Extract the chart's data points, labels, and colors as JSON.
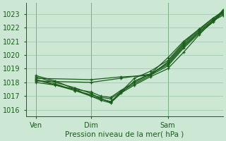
{
  "background_color": "#cce8d4",
  "plot_bg_color": "#cce8d4",
  "grid_color": "#99c4a8",
  "line_color": "#1a5c1a",
  "title": "Pression niveau de la mer( hPa )",
  "xtick_labels": [
    "Ven",
    "Dim",
    "Sam"
  ],
  "ylim": [
    1015.5,
    1023.8
  ],
  "yticks": [
    1016,
    1017,
    1018,
    1019,
    1020,
    1021,
    1022,
    1023
  ],
  "xlim": [
    0,
    100
  ],
  "ven_x": 5,
  "dim_x": 33,
  "sam_x": 72,
  "series": [
    {
      "x": [
        5,
        15,
        25,
        33,
        38,
        43,
        48,
        55,
        63,
        72,
        80,
        88,
        95,
        100
      ],
      "y": [
        1018.5,
        1018.1,
        1017.5,
        1017.0,
        1016.8,
        1016.6,
        1017.2,
        1017.8,
        1018.4,
        1019.0,
        1020.2,
        1021.5,
        1022.5,
        1023.3
      ]
    },
    {
      "x": [
        5,
        15,
        25,
        33,
        38,
        43,
        48,
        55,
        63,
        72,
        80,
        88,
        95,
        100
      ],
      "y": [
        1018.2,
        1017.9,
        1017.4,
        1017.1,
        1016.9,
        1016.8,
        1017.3,
        1017.9,
        1018.5,
        1019.2,
        1020.5,
        1021.6,
        1022.4,
        1023.1
      ]
    },
    {
      "x": [
        5,
        15,
        25,
        33,
        38,
        43,
        48,
        55,
        63,
        72,
        80,
        88,
        95,
        100
      ],
      "y": [
        1018.0,
        1017.8,
        1017.5,
        1017.3,
        1017.0,
        1016.9,
        1017.4,
        1018.0,
        1018.6,
        1019.3,
        1020.6,
        1021.7,
        1022.5,
        1023.2
      ]
    },
    {
      "x": [
        5,
        33,
        48,
        63,
        72,
        80,
        88,
        95,
        100
      ],
      "y": [
        1018.3,
        1018.2,
        1018.4,
        1018.5,
        1019.5,
        1020.8,
        1021.8,
        1022.6,
        1023.0
      ]
    },
    {
      "x": [
        5,
        33,
        48,
        63,
        72,
        80,
        88,
        95,
        100
      ],
      "y": [
        1018.1,
        1018.0,
        1018.3,
        1018.6,
        1019.8,
        1021.0,
        1021.9,
        1022.7,
        1023.2
      ]
    },
    {
      "x": [
        5,
        25,
        33,
        38,
        43,
        55,
        63,
        72,
        80,
        88,
        95,
        100
      ],
      "y": [
        1018.4,
        1017.6,
        1017.2,
        1016.8,
        1016.55,
        1018.3,
        1018.8,
        1019.6,
        1020.9,
        1021.9,
        1022.7,
        1023.1
      ]
    },
    {
      "x": [
        5,
        25,
        33,
        38,
        43,
        55,
        63,
        72,
        80,
        88,
        95,
        100
      ],
      "y": [
        1018.2,
        1017.4,
        1017.0,
        1016.7,
        1016.5,
        1018.1,
        1018.6,
        1019.4,
        1020.7,
        1021.7,
        1022.5,
        1022.9
      ]
    }
  ]
}
